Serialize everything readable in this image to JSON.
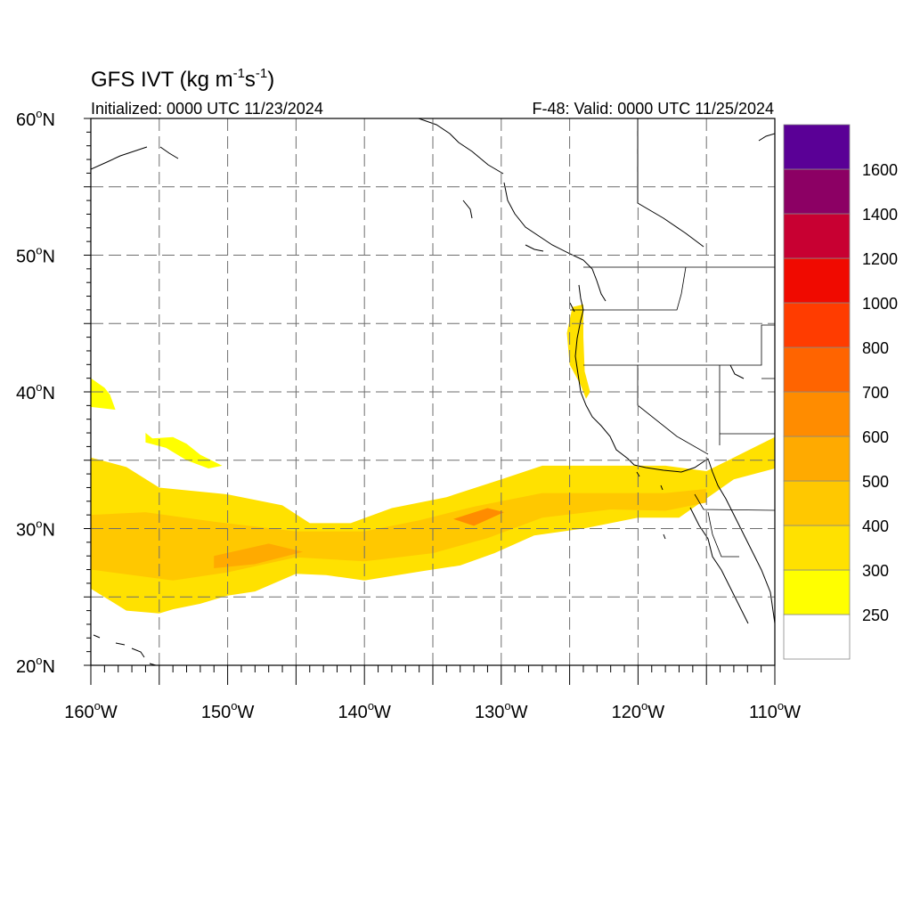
{
  "title_parts": {
    "main": "GFS IVT (kg m",
    "exp1": "-1",
    "mid": "s",
    "exp2": "-1",
    "end": ")"
  },
  "initialized": "Initialized: 0000 UTC 11/23/2024",
  "valid": "F-48: Valid: 0000 UTC 11/25/2024",
  "map": {
    "lon_range": [
      -160,
      -110
    ],
    "lat_range": [
      20,
      60
    ],
    "grid": true,
    "grid_style": "dashed",
    "lat_ticks": [
      {
        "lat": 60,
        "deg": "60",
        "hemi": "N"
      },
      {
        "lat": 50,
        "deg": "50",
        "hemi": "N"
      },
      {
        "lat": 40,
        "deg": "40",
        "hemi": "N"
      },
      {
        "lat": 30,
        "deg": "30",
        "hemi": "N"
      },
      {
        "lat": 20,
        "deg": "20",
        "hemi": "N"
      }
    ],
    "lon_ticks": [
      {
        "lon": -160,
        "deg": "160",
        "hemi": "W"
      },
      {
        "lon": -150,
        "deg": "150",
        "hemi": "W"
      },
      {
        "lon": -140,
        "deg": "140",
        "hemi": "W"
      },
      {
        "lon": -130,
        "deg": "130",
        "hemi": "W"
      },
      {
        "lon": -120,
        "deg": "120",
        "hemi": "W"
      },
      {
        "lon": -110,
        "deg": "110",
        "hemi": "W"
      }
    ]
  },
  "colorbar": {
    "levels": [
      {
        "label": "",
        "color": "#ffffff"
      },
      {
        "label": "250",
        "color": "#ffff00"
      },
      {
        "label": "300",
        "color": "#ffe100"
      },
      {
        "label": "400",
        "color": "#ffc800"
      },
      {
        "label": "500",
        "color": "#ffaa00"
      },
      {
        "label": "600",
        "color": "#ff8c00"
      },
      {
        "label": "700",
        "color": "#ff6400"
      },
      {
        "label": "800",
        "color": "#ff3c00"
      },
      {
        "label": "1000",
        "color": "#f00a00"
      },
      {
        "label": "1200",
        "color": "#c80032"
      },
      {
        "label": "1400",
        "color": "#8c0064"
      },
      {
        "label": "1600",
        "color": "#5a0096"
      }
    ]
  },
  "ivt_field": {
    "river_band": [
      [
        -160,
        35.2
      ],
      [
        -157.4,
        34.5
      ],
      [
        -155,
        33
      ],
      [
        -150,
        32.5
      ],
      [
        -146,
        31.7
      ],
      [
        -144,
        30.4
      ],
      [
        -141,
        30.4
      ],
      [
        -138,
        31.5
      ],
      [
        -134,
        32.3
      ],
      [
        -130,
        33.6
      ],
      [
        -127,
        34.6
      ],
      [
        -122,
        34.6
      ],
      [
        -118,
        34.6
      ],
      [
        -115,
        34.2
      ],
      [
        -113,
        35.2
      ],
      [
        -110,
        36.7
      ],
      [
        -110,
        34.4
      ],
      [
        -113,
        33.6
      ],
      [
        -115,
        32.2
      ],
      [
        -117,
        30.8
      ],
      [
        -120,
        30.8
      ],
      [
        -124,
        30
      ],
      [
        -127.6,
        29.5
      ],
      [
        -130.5,
        28.2
      ],
      [
        -133,
        27.3
      ],
      [
        -135.7,
        26.9
      ],
      [
        -140,
        26.2
      ],
      [
        -142.8,
        26.6
      ],
      [
        -145,
        26.7
      ],
      [
        -148,
        25.4
      ],
      [
        -150,
        25.1
      ],
      [
        -152,
        24.5
      ],
      [
        -154,
        24.1
      ],
      [
        -155,
        23.8
      ],
      [
        -157.4,
        24
      ],
      [
        -160,
        25.6
      ]
    ],
    "river_core": [
      [
        -160,
        31
      ],
      [
        -156,
        31.2
      ],
      [
        -151,
        30.5
      ],
      [
        -145,
        29.8
      ],
      [
        -140,
        29.8
      ],
      [
        -136,
        30.6
      ],
      [
        -132,
        31.6
      ],
      [
        -127,
        32.6
      ],
      [
        -122,
        32.6
      ],
      [
        -118,
        32.6
      ],
      [
        -115,
        32.9
      ],
      [
        -115,
        31.9
      ],
      [
        -118,
        31.3
      ],
      [
        -122,
        31.4
      ],
      [
        -127,
        30.8
      ],
      [
        -131,
        29.3
      ],
      [
        -135,
        28.2
      ],
      [
        -140,
        27.6
      ],
      [
        -145,
        27.9
      ],
      [
        -150,
        26.8
      ],
      [
        -154,
        26.2
      ],
      [
        -160,
        27
      ]
    ],
    "river_hot": [
      [
        -151,
        28
      ],
      [
        -147,
        28.9
      ],
      [
        -144.5,
        28.3
      ],
      [
        -148,
        27.4
      ],
      [
        -151,
        27.1
      ]
    ],
    "river_hot2": [
      [
        -133.5,
        30.7
      ],
      [
        -131,
        31.5
      ],
      [
        -129.8,
        31.2
      ],
      [
        -132,
        30.2
      ]
    ],
    "coast_patch": [
      [
        -124.8,
        46.2
      ],
      [
        -124,
        46.4
      ],
      [
        -124,
        44
      ],
      [
        -123.9,
        41.5
      ],
      [
        -123.5,
        40
      ],
      [
        -123.8,
        39.5
      ],
      [
        -124.2,
        40.5
      ],
      [
        -125,
        42
      ],
      [
        -125.2,
        44.3
      ]
    ],
    "small_patches": [
      [
        [
          -160,
          41
        ],
        [
          -159,
          40.3
        ],
        [
          -158.6,
          39.8
        ],
        [
          -158.2,
          38.7
        ],
        [
          -160,
          38.9
        ]
      ],
      [
        [
          -156,
          37
        ],
        [
          -155.5,
          36.6
        ],
        [
          -154,
          36.7
        ],
        [
          -153,
          36.2
        ],
        [
          -152,
          35.4
        ],
        [
          -151.2,
          35
        ],
        [
          -150.4,
          34.6
        ],
        [
          -151.4,
          34.4
        ],
        [
          -153,
          35
        ],
        [
          -154.5,
          35.9
        ],
        [
          -156,
          36.3
        ]
      ]
    ]
  }
}
